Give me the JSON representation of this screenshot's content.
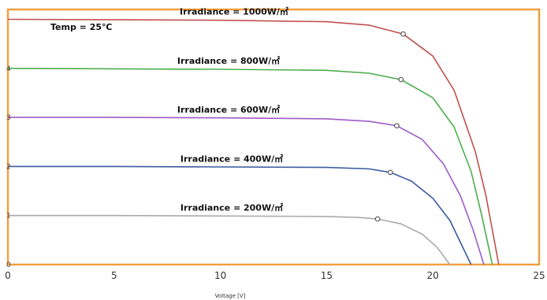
{
  "chart_data": {
    "type": "line",
    "title": "",
    "xlabel": "Voltage [V]",
    "ylabel": "",
    "xlim": [
      0,
      25
    ],
    "ylim": [
      0,
      5.2
    ],
    "x_ticks": [
      "0",
      "5",
      "10",
      "15",
      "20",
      "25"
    ],
    "y_ticks": [
      "0",
      "1",
      "2",
      "3",
      "4"
    ],
    "grid": false,
    "frame_color": "#f0a040",
    "annotations": [
      {
        "text": "Temp = 25℃"
      }
    ],
    "series": [
      {
        "name": "Irradiance = 1000W/㎡",
        "color": "#c0504d",
        "isc": 5.0,
        "voc": 23.1,
        "mpp": [
          18.6,
          4.7
        ],
        "points": [
          [
            0,
            5.0
          ],
          [
            5,
            4.99
          ],
          [
            10,
            4.98
          ],
          [
            15,
            4.95
          ],
          [
            17,
            4.88
          ],
          [
            18.6,
            4.7
          ],
          [
            20,
            4.25
          ],
          [
            21,
            3.55
          ],
          [
            22,
            2.3
          ],
          [
            22.5,
            1.4
          ],
          [
            22.8,
            0.7
          ],
          [
            23.1,
            0
          ]
        ]
      },
      {
        "name": "Irradiance = 800W/㎡",
        "color": "#4cae4c",
        "isc": 4.0,
        "voc": 22.8,
        "mpp": [
          18.5,
          3.77
        ],
        "points": [
          [
            0,
            4.0
          ],
          [
            5,
            3.99
          ],
          [
            10,
            3.98
          ],
          [
            15,
            3.96
          ],
          [
            17,
            3.9
          ],
          [
            18.5,
            3.77
          ],
          [
            20,
            3.4
          ],
          [
            21,
            2.8
          ],
          [
            21.8,
            1.9
          ],
          [
            22.3,
            1.0
          ],
          [
            22.8,
            0
          ]
        ]
      },
      {
        "name": "Irradiance = 600W/㎡",
        "color": "#9d5cc8",
        "isc": 3.0,
        "voc": 22.4,
        "mpp": [
          18.3,
          2.83
        ],
        "points": [
          [
            0,
            3.0
          ],
          [
            5,
            3.0
          ],
          [
            10,
            2.99
          ],
          [
            15,
            2.97
          ],
          [
            17,
            2.92
          ],
          [
            18.3,
            2.83
          ],
          [
            19.5,
            2.55
          ],
          [
            20.5,
            2.05
          ],
          [
            21.3,
            1.4
          ],
          [
            21.9,
            0.7
          ],
          [
            22.4,
            0
          ]
        ]
      },
      {
        "name": "Irradiance = 400W/㎡",
        "color": "#3a5ba0",
        "isc": 2.0,
        "voc": 21.8,
        "mpp": [
          18.0,
          1.88
        ],
        "points": [
          [
            0,
            2.0
          ],
          [
            5,
            2.0
          ],
          [
            10,
            1.99
          ],
          [
            15,
            1.98
          ],
          [
            17,
            1.95
          ],
          [
            18.0,
            1.88
          ],
          [
            19,
            1.7
          ],
          [
            20,
            1.35
          ],
          [
            20.8,
            0.9
          ],
          [
            21.3,
            0.45
          ],
          [
            21.8,
            0
          ]
        ]
      },
      {
        "name": "Irradiance = 200W/㎡",
        "color": "#aaaaaa",
        "isc": 1.0,
        "voc": 20.8,
        "mpp": [
          17.4,
          0.93
        ],
        "points": [
          [
            0,
            1.0
          ],
          [
            5,
            1.0
          ],
          [
            10,
            0.99
          ],
          [
            15,
            0.98
          ],
          [
            16.5,
            0.96
          ],
          [
            17.4,
            0.93
          ],
          [
            18.5,
            0.83
          ],
          [
            19.5,
            0.62
          ],
          [
            20.2,
            0.35
          ],
          [
            20.8,
            0
          ]
        ]
      }
    ]
  }
}
